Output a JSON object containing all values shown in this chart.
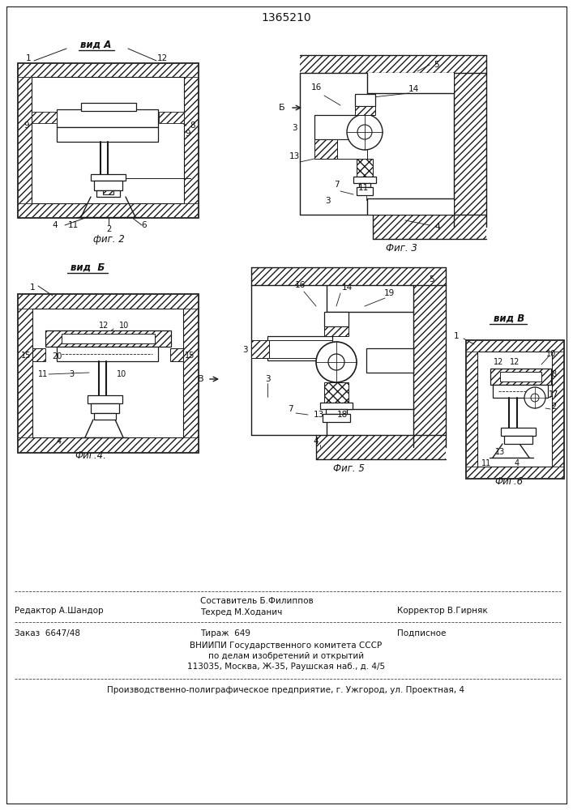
{
  "patent_number": "1365210",
  "bg_color": "#ffffff",
  "line_color": "#1a1a1a",
  "text_color": "#111111",
  "hatch_color": "#333333",
  "vid_a_label": "вид А",
  "vid_b_label": "вид  Б",
  "vid_v_label": "вид В",
  "footer_line1_left": "Редактор А.Шандор",
  "footer_line1_center_top": "Составитель Б.Филиппов",
  "footer_line1_center_bot": "Техред М.Хoданич",
  "footer_line1_right": "Корректор В.Гирняк",
  "footer_line2_left": "Заказ  6647/48",
  "footer_line2_center1": "Тираж  649",
  "footer_line2_center2": "Подписное",
  "footer_line3": "ВНИИПИ Государственного комитета СССР",
  "footer_line4": "по делам изобретений и открытий",
  "footer_line5": "113035, Москва, Ж-35, Раушская наб., д. 4/5",
  "footer_line6": "Производственно-полиграфическое предприятие, г. Ужгород, ул. Проектная, 4"
}
